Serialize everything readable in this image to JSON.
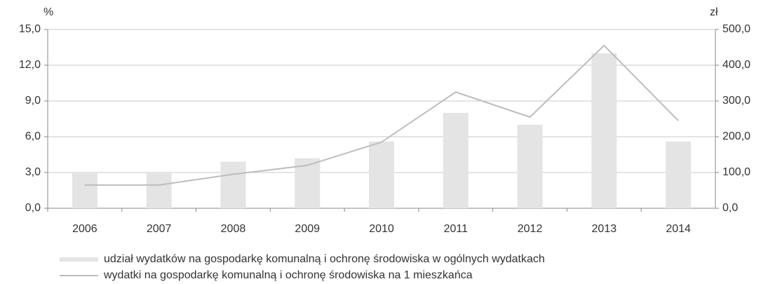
{
  "chart_data": {
    "type": "bar",
    "y_unit": "%",
    "y2_unit": "zł",
    "categories": [
      "2006",
      "2007",
      "2008",
      "2009",
      "2010",
      "2011",
      "2012",
      "2013",
      "2014"
    ],
    "series": [
      {
        "name": "udział wydatków na gospodarkę komunalną i ochronę środowiska w ogólnych wydatkach",
        "type": "bar",
        "color": "#e4e4e4",
        "values": [
          3.0,
          3.0,
          3.9,
          4.2,
          5.6,
          8.0,
          7.0,
          13.0,
          5.6
        ]
      },
      {
        "name": "wydatki na gospodarkę komunalną i ochronę środowiska na 1 mieszkańca",
        "type": "line",
        "axis": "y2",
        "color": "#bdbdbd",
        "values": [
          65,
          65,
          95,
          120,
          185,
          325,
          255,
          455,
          245
        ]
      }
    ],
    "ylim": [
      0,
      15
    ],
    "yticks": [
      {
        "value": 0,
        "label": "0,0"
      },
      {
        "value": 3,
        "label": "3,0"
      },
      {
        "value": 6,
        "label": "6,0"
      },
      {
        "value": 9,
        "label": "9,0"
      },
      {
        "value": 12,
        "label": "12,0"
      },
      {
        "value": 15,
        "label": "15,0"
      }
    ],
    "y2lim": [
      0,
      500
    ],
    "y2ticks": [
      {
        "value": 0,
        "label": "0,0"
      },
      {
        "value": 100,
        "label": "100,0"
      },
      {
        "value": 200,
        "label": "200,0"
      },
      {
        "value": 300,
        "label": "300,0"
      },
      {
        "value": 400,
        "label": "400,0"
      },
      {
        "value": 500,
        "label": "500,0"
      }
    ],
    "grid": true
  }
}
